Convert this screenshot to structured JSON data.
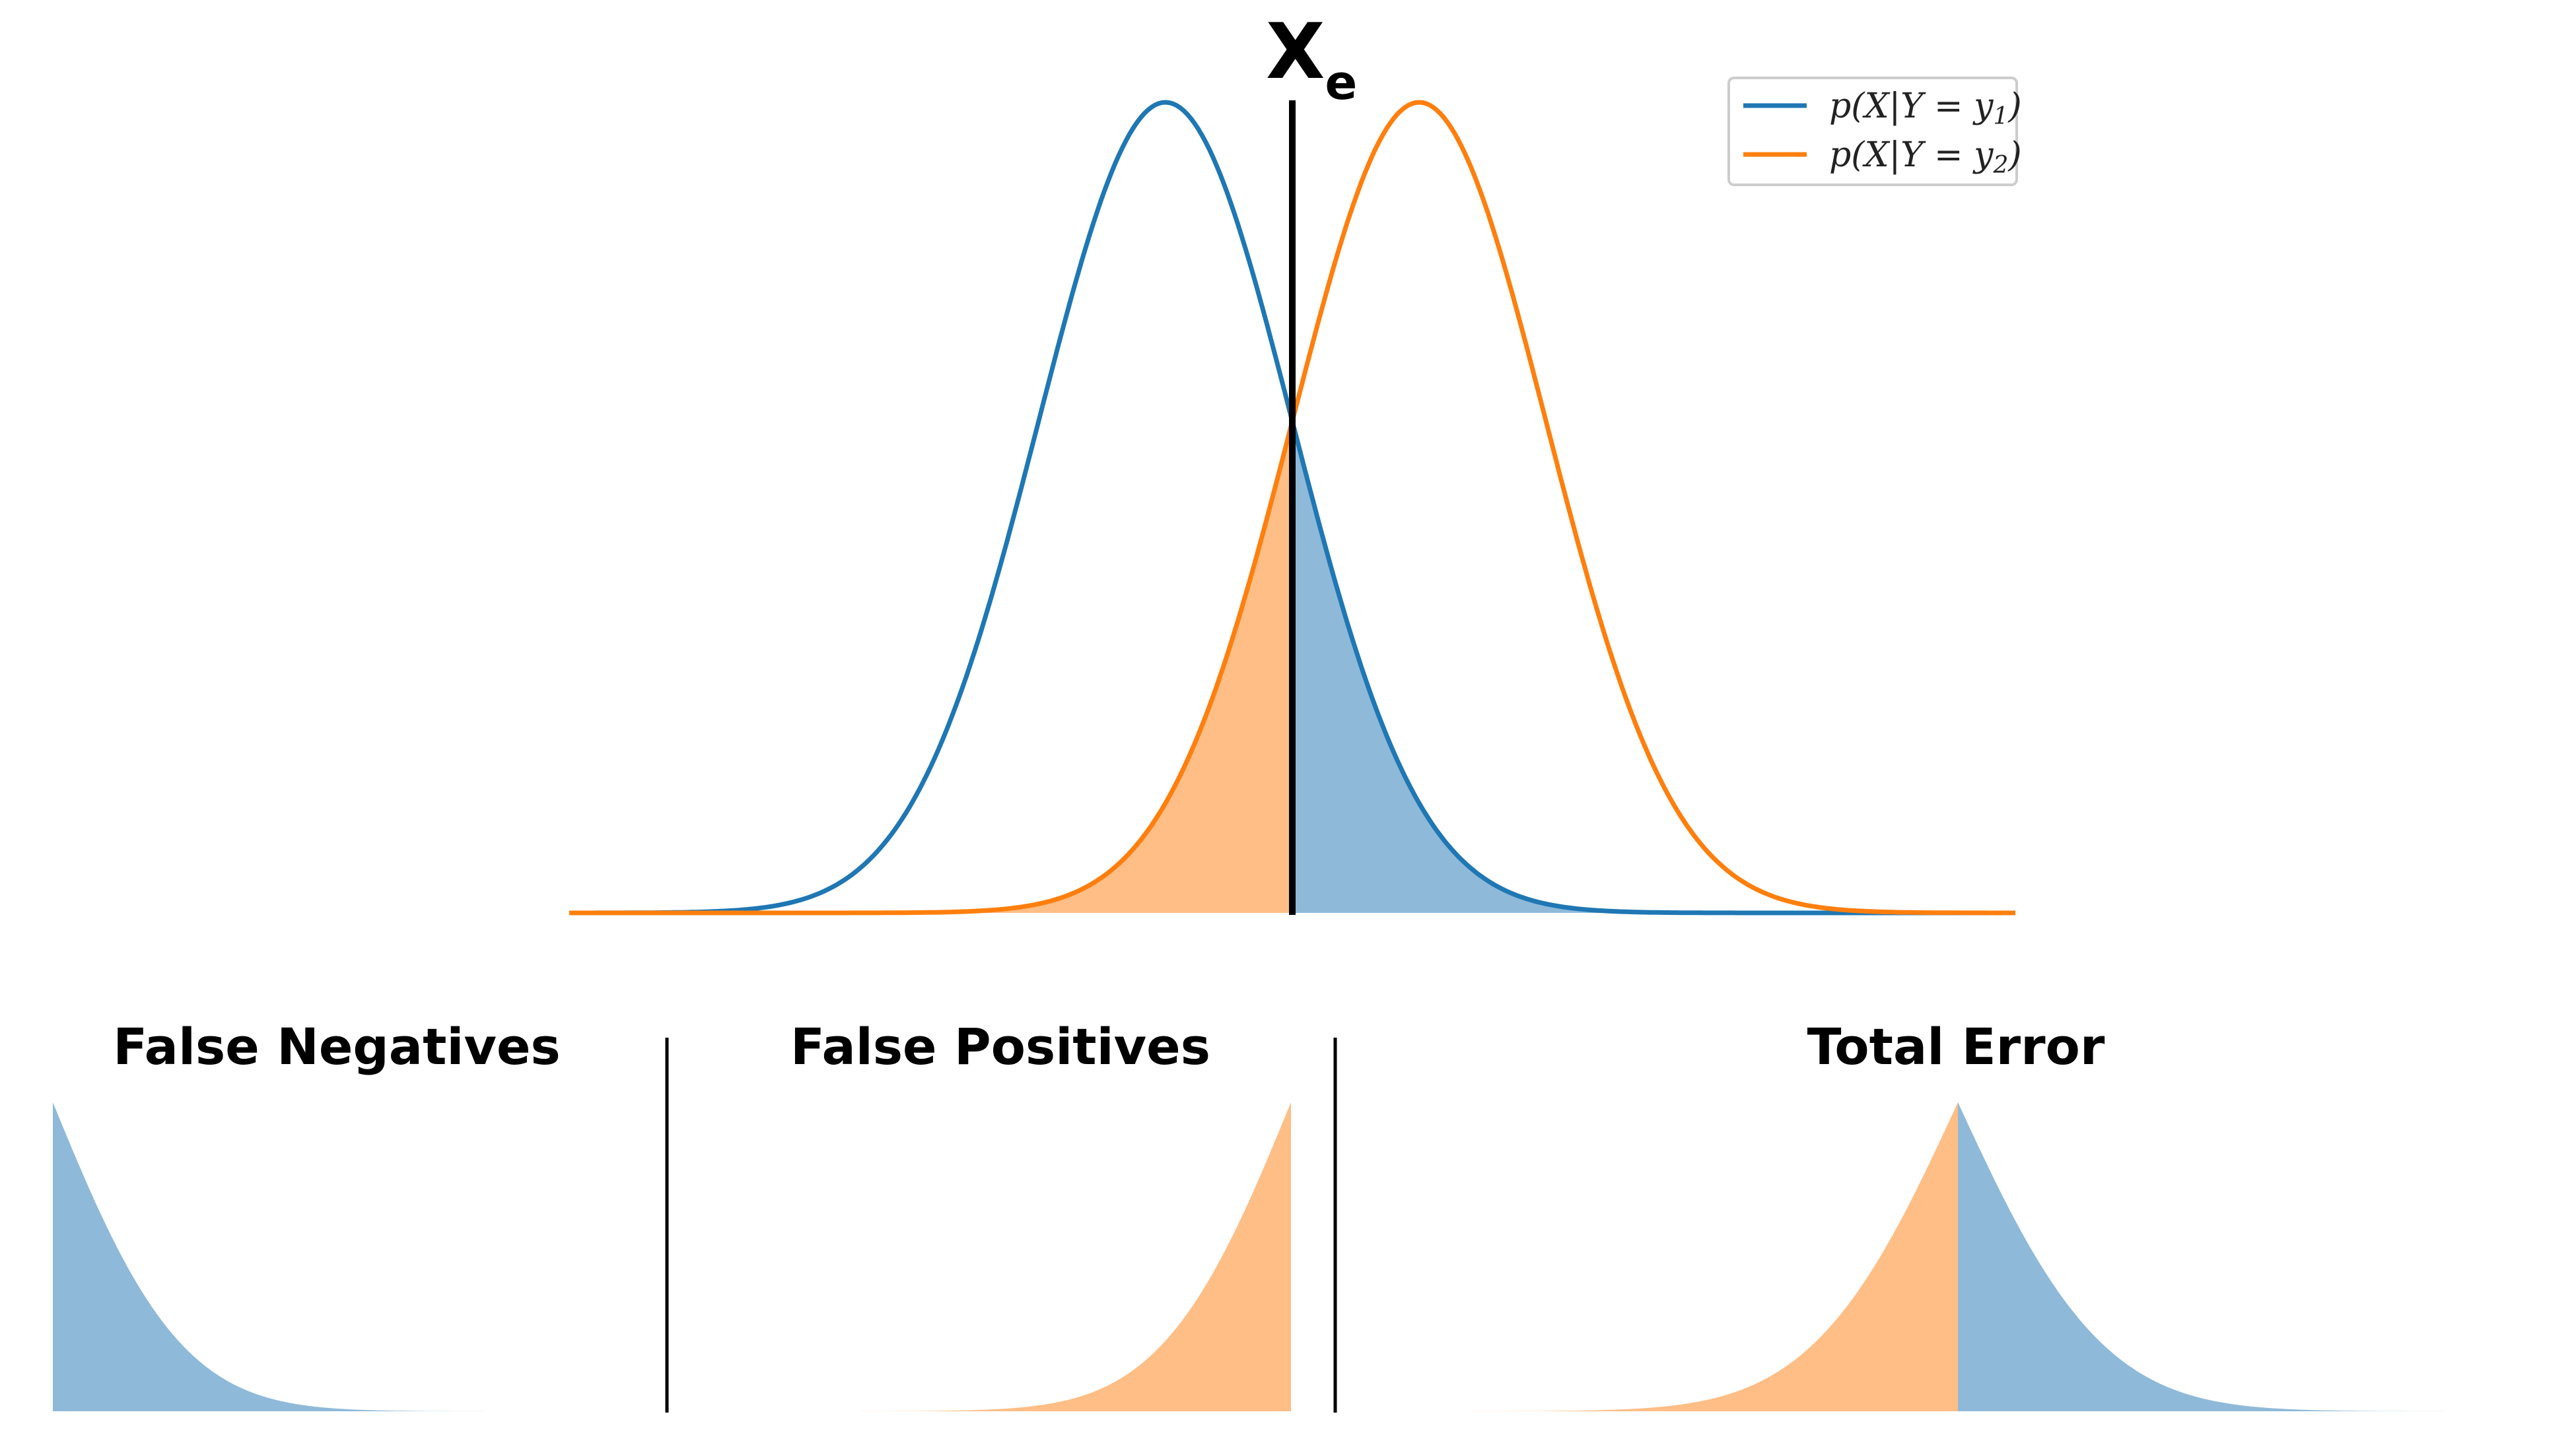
{
  "chart_data": [
    {
      "type": "line",
      "title": "",
      "xlabel": "",
      "ylabel": "",
      "axes_visible": false,
      "grid": false,
      "x_range": [
        -4.7,
        6.7
      ],
      "y_range": [
        0,
        0.4
      ],
      "threshold": {
        "x": 1.0,
        "label_main": "X",
        "label_sub": "e"
      },
      "series": [
        {
          "name": "p(X|Y = y1)",
          "distribution": "normal",
          "mean": 0,
          "std": 1,
          "color": "#1f77b4",
          "fill_region": "x > threshold",
          "fill_color": "#8fb9d9"
        },
        {
          "name": "p(X|Y = y2)",
          "distribution": "normal",
          "mean": 2,
          "std": 1,
          "color": "#ff7f0e",
          "fill_region": "x < threshold",
          "fill_color": "#ffbe86"
        }
      ],
      "legend": {
        "placement": "top-right",
        "entries": [
          {
            "base": "p(X|Y = y",
            "sub": "1",
            "close": ")",
            "color": "#1f77b4"
          },
          {
            "base": "p(X|Y = y",
            "sub": "2",
            "close": ")",
            "color": "#ff7f0e"
          }
        ]
      }
    },
    {
      "type": "area",
      "title": "False Negatives",
      "description_series": "p(X|Y = y1) for x > threshold",
      "x_range": [
        1.0,
        5.5
      ],
      "color": "#8fb9d9"
    },
    {
      "type": "area",
      "title": "False Positives",
      "description_series": "p(X|Y = y2) for x < threshold",
      "x_range": [
        -3.5,
        1.0
      ],
      "color": "#ffbe86"
    },
    {
      "type": "area",
      "title": "Total Error",
      "x_range": [
        -3.0,
        5.0
      ],
      "left_color": "#ffbe86",
      "right_color": "#8fb9d9"
    }
  ],
  "panels": {
    "fn_title": "False Negatives",
    "fp_title": "False Positives",
    "te_title": "Total Error"
  }
}
